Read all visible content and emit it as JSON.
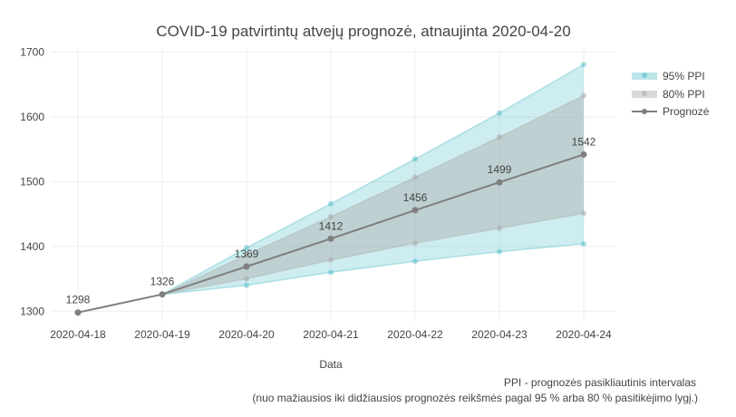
{
  "chart_data": {
    "type": "line",
    "title": "COVID-19 patvirtintų atvejų prognozė, atnaujinta 2020-04-20",
    "xlabel": "Data",
    "ylabel": "",
    "x": [
      "2020-04-18",
      "2020-04-19",
      "2020-04-20",
      "2020-04-21",
      "2020-04-22",
      "2020-04-23",
      "2020-04-24"
    ],
    "xlim": [
      "2020-04-18",
      "2020-04-24"
    ],
    "ylim": [
      1285,
      1705
    ],
    "yticks": [
      1300,
      1400,
      1500,
      1600,
      1700
    ],
    "grid": true,
    "legend_position": "top-right",
    "series": [
      {
        "name": "95% PPI",
        "kind": "band",
        "x": [
          "2020-04-19",
          "2020-04-20",
          "2020-04-21",
          "2020-04-22",
          "2020-04-23",
          "2020-04-24"
        ],
        "lower": [
          1326,
          1340,
          1360,
          1377,
          1392,
          1404
        ],
        "upper": [
          1326,
          1398,
          1466,
          1535,
          1606,
          1681
        ],
        "color": "#40b8c4"
      },
      {
        "name": "80% PPI",
        "kind": "band",
        "x": [
          "2020-04-19",
          "2020-04-20",
          "2020-04-21",
          "2020-04-22",
          "2020-04-23",
          "2020-04-24"
        ],
        "lower": [
          1326,
          1350,
          1379,
          1405,
          1428,
          1451
        ],
        "upper": [
          1326,
          1387,
          1446,
          1507,
          1569,
          1633
        ],
        "color": "#aaaaaa"
      },
      {
        "name": "Prognozė",
        "kind": "line",
        "x": [
          "2020-04-18",
          "2020-04-19",
          "2020-04-20",
          "2020-04-21",
          "2020-04-22",
          "2020-04-23",
          "2020-04-24"
        ],
        "values": [
          1298,
          1326,
          1369,
          1412,
          1456,
          1499,
          1542
        ],
        "labels": [
          "1298",
          "1326",
          "1369",
          "1412",
          "1456",
          "1499",
          "1542"
        ],
        "color": "#7f7f7f"
      }
    ],
    "annotation_lines": [
      "PPI - prognozės pasikliautinis intervalas",
      "(nuo mažiausios iki didžiausios prognozės reikšmės pagal 95 % arba 80 % pasitikėjimo lygį.)"
    ]
  }
}
